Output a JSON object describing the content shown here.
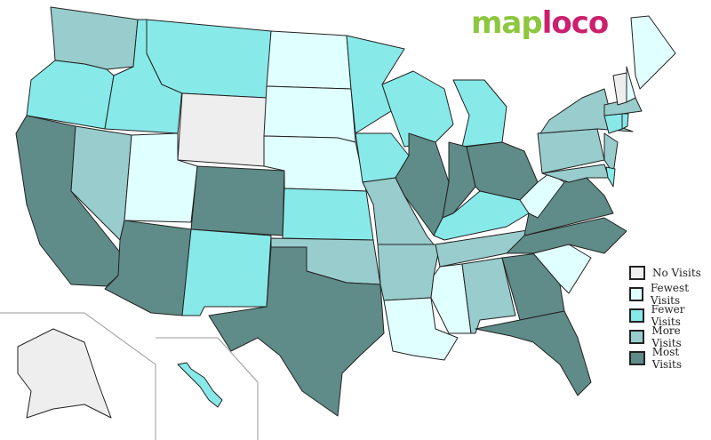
{
  "logo": {
    "part1": "map",
    "part2": "loco",
    "color1": "#8dc63f",
    "color2": "#cc1f6e"
  },
  "legend": [
    {
      "key": "none",
      "label": "No Visits",
      "color": "#eeeeee"
    },
    {
      "key": "fewest",
      "label": "Fewest Visits",
      "color": "#e0ffff"
    },
    {
      "key": "fewer",
      "label": "Fewer Visits",
      "color": "#88e9e9"
    },
    {
      "key": "more",
      "label": "More Visits",
      "color": "#99cccc"
    },
    {
      "key": "most",
      "label": "Most Visits",
      "color": "#5f8b88"
    }
  ],
  "states": {
    "WA": "more",
    "OR": "fewer",
    "CA": "most",
    "NV": "more",
    "ID": "fewer",
    "MT": "fewer",
    "WY": "none",
    "UT": "fewest",
    "CO": "most",
    "AZ": "most",
    "NM": "fewer",
    "ND": "fewest",
    "SD": "fewest",
    "NE": "fewest",
    "KS": "fewer",
    "OK": "more",
    "TX": "most",
    "MN": "fewer",
    "IA": "fewer",
    "MO": "more",
    "AR": "more",
    "LA": "fewest",
    "WI": "fewer",
    "IL": "most",
    "MI": "fewer",
    "IN": "most",
    "OH": "most",
    "KY": "fewer",
    "TN": "more",
    "MS": "fewest",
    "AL": "more",
    "GA": "most",
    "FL": "most",
    "SC": "fewest",
    "NC": "most",
    "VA": "most",
    "WV": "fewest",
    "PA": "more",
    "NY": "more",
    "NJ": "more",
    "MD": "more",
    "DE": "fewer",
    "CT": "fewer",
    "RI": "fewer",
    "MA": "more",
    "VT": "none",
    "NH": "fewest",
    "ME": "fewest",
    "AK": "none",
    "HI": "fewer"
  }
}
